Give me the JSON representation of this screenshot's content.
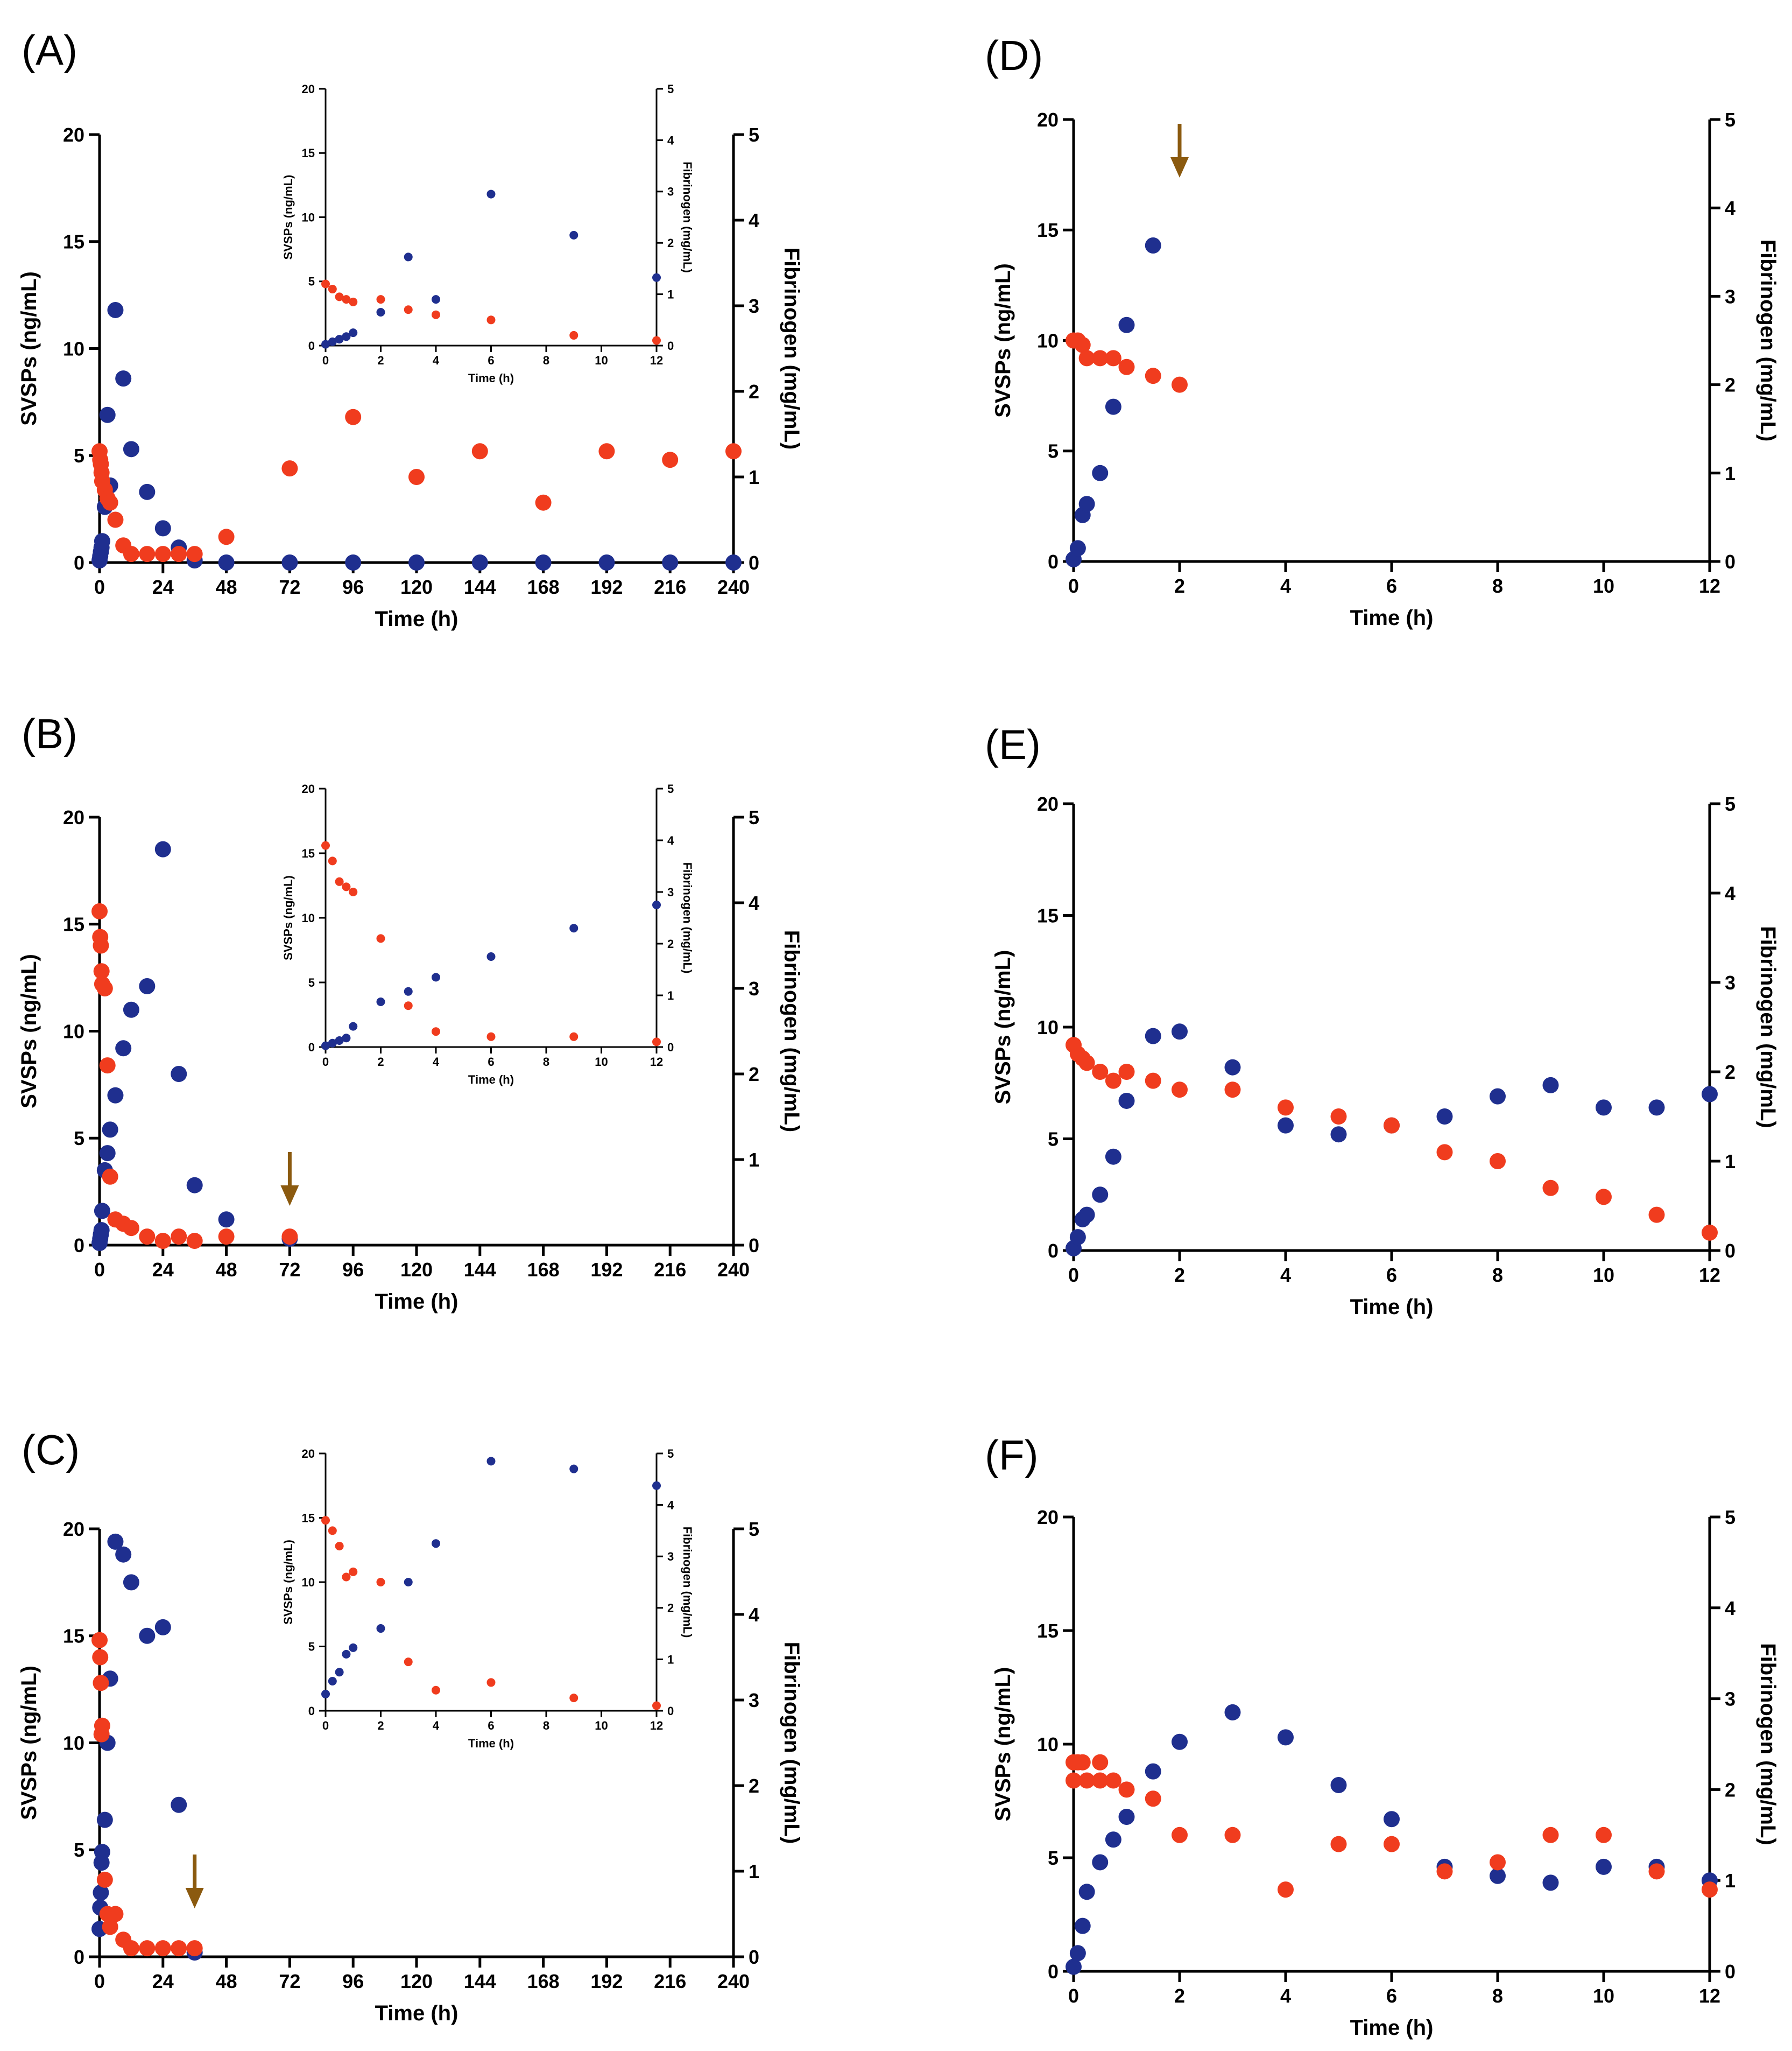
{
  "colors": {
    "svsp": "#1f2f8f",
    "fibrinogen": "#f03c1e",
    "arrow": "#8b5a0f",
    "axis": "#000000"
  },
  "chart_data": [
    {
      "id": "A",
      "type": "scatter",
      "panel_label": "(A)",
      "xlabel": "Time (h)",
      "ylabel": "SVSPs (ng/mL)",
      "y2label": "Fibrinogen (mg/mL)",
      "xlim": [
        0,
        240
      ],
      "ylim": [
        0,
        20
      ],
      "y2lim": [
        0,
        5
      ],
      "xticks": [
        0,
        24,
        48,
        72,
        96,
        120,
        144,
        168,
        192,
        216,
        240
      ],
      "yticks": [
        0,
        5,
        10,
        15,
        20
      ],
      "y2ticks": [
        0,
        1,
        2,
        3,
        4,
        5
      ],
      "arrow_x": null,
      "series": [
        {
          "name": "SVSPs",
          "axis": "left",
          "color": "svsp",
          "x": [
            0,
            0.25,
            0.5,
            0.75,
            1,
            2,
            3,
            4,
            6,
            9,
            12,
            18,
            24,
            30,
            36,
            48,
            72,
            96,
            120,
            144,
            168,
            192,
            216,
            240
          ],
          "y": [
            0.1,
            0.3,
            0.5,
            0.7,
            1.0,
            2.6,
            6.9,
            3.6,
            11.8,
            8.6,
            5.3,
            3.3,
            1.6,
            0.7,
            0.1,
            0,
            0,
            0,
            0,
            0,
            0,
            0,
            0,
            0
          ]
        },
        {
          "name": "Fibrinogen",
          "axis": "right",
          "color": "fibrinogen",
          "x": [
            0,
            0.25,
            0.5,
            0.75,
            1,
            2,
            3,
            4,
            6,
            9,
            12,
            18,
            24,
            30,
            36,
            48,
            72,
            96,
            120,
            144,
            168,
            192,
            216,
            240
          ],
          "y": [
            1.3,
            1.2,
            1.15,
            1.05,
            0.95,
            0.85,
            0.75,
            0.7,
            0.5,
            0.2,
            0.1,
            0.1,
            0.1,
            0.1,
            0.1,
            0.3,
            1.1,
            1.7,
            1.0,
            1.3,
            0.7,
            1.3,
            1.2,
            1.3
          ]
        }
      ],
      "inset": {
        "xlabel": "Time (h)",
        "ylabel": "SVSPs (ng/mL)",
        "y2label": "Fibrinogen (mg/mL)",
        "xlim": [
          0,
          12
        ],
        "ylim": [
          0,
          20
        ],
        "y2lim": [
          0,
          5
        ],
        "xticks": [
          0,
          2,
          4,
          6,
          8,
          10,
          12
        ],
        "yticks": [
          0,
          5,
          10,
          15,
          20
        ],
        "y2ticks": [
          0,
          1,
          2,
          3,
          4,
          5
        ],
        "series": [
          {
            "name": "SVSPs",
            "axis": "left",
            "color": "svsp",
            "x": [
              0,
              0.25,
              0.5,
              0.75,
              1,
              2,
              3,
              4,
              6,
              9,
              12
            ],
            "y": [
              0.1,
              0.3,
              0.5,
              0.7,
              1.0,
              2.6,
              6.9,
              3.6,
              11.8,
              8.6,
              5.3
            ]
          },
          {
            "name": "Fibrinogen",
            "axis": "right",
            "color": "fibrinogen",
            "x": [
              0,
              0.25,
              0.5,
              0.75,
              1,
              2,
              3,
              4,
              6,
              9,
              12
            ],
            "y": [
              1.2,
              1.1,
              0.95,
              0.9,
              0.85,
              0.9,
              0.7,
              0.6,
              0.5,
              0.2,
              0.1
            ]
          }
        ]
      }
    },
    {
      "id": "B",
      "type": "scatter",
      "panel_label": "(B)",
      "xlabel": "Time (h)",
      "ylabel": "SVSPs (ng/mL)",
      "y2label": "Fibrinogen (mg/mL)",
      "xlim": [
        0,
        240
      ],
      "ylim": [
        0,
        20
      ],
      "y2lim": [
        0,
        5
      ],
      "xticks": [
        0,
        24,
        48,
        72,
        96,
        120,
        144,
        168,
        192,
        216,
        240
      ],
      "yticks": [
        0,
        5,
        10,
        15,
        20
      ],
      "y2ticks": [
        0,
        1,
        2,
        3,
        4,
        5
      ],
      "arrow_x": 72,
      "series": [
        {
          "name": "SVSPs",
          "axis": "left",
          "color": "svsp",
          "x": [
            0,
            0.25,
            0.5,
            0.75,
            1,
            2,
            3,
            4,
            6,
            9,
            12,
            18,
            24,
            30,
            36,
            48,
            72
          ],
          "y": [
            0.1,
            0.3,
            0.5,
            0.7,
            1.6,
            3.5,
            4.3,
            5.4,
            7.0,
            9.2,
            11.0,
            12.1,
            18.5,
            8.0,
            2.8,
            1.2,
            0.3
          ]
        },
        {
          "name": "Fibrinogen",
          "axis": "right",
          "color": "fibrinogen",
          "x": [
            0,
            0.25,
            0.5,
            0.75,
            1,
            2,
            3,
            4,
            6,
            9,
            12,
            18,
            24,
            30,
            36,
            48,
            72
          ],
          "y": [
            3.9,
            3.6,
            3.5,
            3.2,
            3.05,
            3.0,
            2.1,
            0.8,
            0.3,
            0.25,
            0.2,
            0.1,
            0.05,
            0.1,
            0.05,
            0.1,
            0.1
          ]
        }
      ],
      "inset": {
        "xlabel": "Time (h)",
        "ylabel": "SVSPs (ng/mL)",
        "y2label": "Fibrinogen (mg/mL)",
        "xlim": [
          0,
          12
        ],
        "ylim": [
          0,
          20
        ],
        "y2lim": [
          0,
          5
        ],
        "xticks": [
          0,
          2,
          4,
          6,
          8,
          10,
          12
        ],
        "yticks": [
          0,
          5,
          10,
          15,
          20
        ],
        "y2ticks": [
          0,
          1,
          2,
          3,
          4,
          5
        ],
        "series": [
          {
            "name": "SVSPs",
            "axis": "left",
            "color": "svsp",
            "x": [
              0,
              0.25,
              0.5,
              0.75,
              1,
              2,
              3,
              4,
              6,
              9,
              12
            ],
            "y": [
              0.1,
              0.3,
              0.5,
              0.7,
              1.6,
              3.5,
              4.3,
              5.4,
              7.0,
              9.2,
              11.0
            ]
          },
          {
            "name": "Fibrinogen",
            "axis": "right",
            "color": "fibrinogen",
            "x": [
              0,
              0.25,
              0.5,
              0.75,
              1,
              2,
              3,
              4,
              6,
              9,
              12
            ],
            "y": [
              3.9,
              3.6,
              3.2,
              3.1,
              3.0,
              2.1,
              0.8,
              0.3,
              0.2,
              0.2,
              0.1
            ]
          }
        ]
      }
    },
    {
      "id": "C",
      "type": "scatter",
      "panel_label": "(C)",
      "xlabel": "Time (h)",
      "ylabel": "SVSPs (ng/mL)",
      "y2label": "Fibrinogen (mg/mL)",
      "xlim": [
        0,
        240
      ],
      "ylim": [
        0,
        20
      ],
      "y2lim": [
        0,
        5
      ],
      "xticks": [
        0,
        24,
        48,
        72,
        96,
        120,
        144,
        168,
        192,
        216,
        240
      ],
      "yticks": [
        0,
        5,
        10,
        15,
        20
      ],
      "y2ticks": [
        0,
        1,
        2,
        3,
        4,
        5
      ],
      "arrow_x": 36,
      "series": [
        {
          "name": "SVSPs",
          "axis": "left",
          "color": "svsp",
          "x": [
            0,
            0.25,
            0.5,
            0.75,
            1,
            2,
            3,
            4,
            6,
            9,
            12,
            18,
            24,
            30,
            36
          ],
          "y": [
            1.3,
            2.3,
            3.0,
            4.4,
            4.9,
            6.4,
            10.0,
            13.0,
            19.4,
            18.8,
            17.5,
            15.0,
            15.4,
            7.1,
            0.2
          ]
        },
        {
          "name": "Fibrinogen",
          "axis": "right",
          "color": "fibrinogen",
          "x": [
            0,
            0.25,
            0.5,
            0.75,
            1,
            2,
            3,
            4,
            6,
            9,
            12,
            18,
            24,
            30,
            36
          ],
          "y": [
            3.7,
            3.5,
            3.2,
            2.6,
            2.7,
            0.9,
            0.5,
            0.35,
            0.5,
            0.2,
            0.1,
            0.1,
            0.1,
            0.1,
            0.1
          ]
        }
      ],
      "inset": {
        "xlabel": "Time (h)",
        "ylabel": "SVSPs (ng/mL)",
        "y2label": "Fibrinogen (mg/mL)",
        "xlim": [
          0,
          12
        ],
        "ylim": [
          0,
          20
        ],
        "y2lim": [
          0,
          5
        ],
        "xticks": [
          0,
          2,
          4,
          6,
          8,
          10,
          12
        ],
        "yticks": [
          0,
          5,
          10,
          15,
          20
        ],
        "y2ticks": [
          0,
          1,
          2,
          3,
          4,
          5
        ],
        "series": [
          {
            "name": "SVSPs",
            "axis": "left",
            "color": "svsp",
            "x": [
              0,
              0.25,
              0.5,
              0.75,
              1,
              2,
              3,
              4,
              6,
              9,
              12
            ],
            "y": [
              1.3,
              2.3,
              3.0,
              4.4,
              4.9,
              6.4,
              10.0,
              13.0,
              19.4,
              18.8,
              17.5
            ]
          },
          {
            "name": "Fibrinogen",
            "axis": "right",
            "color": "fibrinogen",
            "x": [
              0,
              0.25,
              0.5,
              0.75,
              1,
              2,
              3,
              4,
              6,
              9,
              12
            ],
            "y": [
              3.7,
              3.5,
              3.2,
              2.6,
              2.7,
              2.5,
              0.95,
              0.4,
              0.55,
              0.25,
              0.1
            ]
          }
        ]
      }
    },
    {
      "id": "D",
      "type": "scatter",
      "panel_label": "(D)",
      "xlabel": "Time (h)",
      "ylabel": "SVSPs (ng/mL)",
      "y2label": "Fibrinogen (mg/mL)",
      "xlim": [
        0,
        12
      ],
      "ylim": [
        0,
        20
      ],
      "y2lim": [
        0,
        5
      ],
      "xticks": [
        0,
        2,
        4,
        6,
        8,
        10,
        12
      ],
      "yticks": [
        0,
        5,
        10,
        15,
        20
      ],
      "y2ticks": [
        0,
        1,
        2,
        3,
        4,
        5
      ],
      "arrow_x": 2,
      "series": [
        {
          "name": "SVSPs",
          "axis": "left",
          "color": "svsp",
          "x": [
            0,
            0.08,
            0.17,
            0.25,
            0.5,
            0.75,
            1,
            1.5
          ],
          "y": [
            0.1,
            0.6,
            2.1,
            2.6,
            4.0,
            7.0,
            10.7,
            14.3
          ]
        },
        {
          "name": "Fibrinogen",
          "axis": "right",
          "color": "fibrinogen",
          "x": [
            0,
            0.08,
            0.17,
            0.25,
            0.5,
            0.75,
            1,
            1.5,
            2
          ],
          "y": [
            2.5,
            2.5,
            2.45,
            2.3,
            2.3,
            2.3,
            2.2,
            2.1,
            2.0
          ]
        }
      ]
    },
    {
      "id": "E",
      "type": "scatter",
      "panel_label": "(E)",
      "xlabel": "Time (h)",
      "ylabel": "SVSPs (ng/mL)",
      "y2label": "Fibrinogen (mg/mL)",
      "xlim": [
        0,
        12
      ],
      "ylim": [
        0,
        20
      ],
      "y2lim": [
        0,
        5
      ],
      "xticks": [
        0,
        2,
        4,
        6,
        8,
        10,
        12
      ],
      "yticks": [
        0,
        5,
        10,
        15,
        20
      ],
      "y2ticks": [
        0,
        1,
        2,
        3,
        4,
        5
      ],
      "arrow_x": null,
      "series": [
        {
          "name": "SVSPs",
          "axis": "left",
          "color": "svsp",
          "x": [
            0,
            0.08,
            0.17,
            0.25,
            0.5,
            0.75,
            1,
            1.5,
            2,
            3,
            4,
            5,
            6,
            7,
            8,
            9,
            10,
            11,
            12
          ],
          "y": [
            0.1,
            0.6,
            1.4,
            1.6,
            2.5,
            4.2,
            6.7,
            9.6,
            9.8,
            8.2,
            5.6,
            5.2,
            5.6,
            6.0,
            6.9,
            7.4,
            6.4,
            6.4,
            7.0
          ]
        },
        {
          "name": "Fibrinogen",
          "axis": "right",
          "color": "fibrinogen",
          "x": [
            0,
            0.08,
            0.17,
            0.25,
            0.5,
            0.75,
            1,
            1.5,
            2,
            3,
            4,
            5,
            6,
            7,
            8,
            9,
            10,
            11,
            12
          ],
          "y": [
            2.3,
            2.2,
            2.15,
            2.1,
            2.0,
            1.9,
            2.0,
            1.9,
            1.8,
            1.8,
            1.6,
            1.5,
            1.4,
            1.1,
            1.0,
            0.7,
            0.6,
            0.4,
            0.2
          ]
        }
      ]
    },
    {
      "id": "F",
      "type": "scatter",
      "panel_label": "(F)",
      "xlabel": "Time (h)",
      "ylabel": "SVSPs (ng/mL)",
      "y2label": "Fibrinogen (mg/mL)",
      "xlim": [
        0,
        12
      ],
      "ylim": [
        0,
        20
      ],
      "y2lim": [
        0,
        5
      ],
      "xticks": [
        0,
        2,
        4,
        6,
        8,
        10,
        12
      ],
      "yticks": [
        0,
        5,
        10,
        15,
        20
      ],
      "y2ticks": [
        0,
        1,
        2,
        3,
        4,
        5
      ],
      "arrow_x": null,
      "series": [
        {
          "name": "SVSPs",
          "axis": "left",
          "color": "svsp",
          "x": [
            0,
            0.08,
            0.17,
            0.25,
            0.5,
            0.75,
            1,
            1.5,
            2,
            3,
            4,
            5,
            6,
            7,
            8,
            9,
            10,
            11,
            12
          ],
          "y": [
            0.2,
            0.8,
            2.0,
            3.5,
            4.8,
            5.8,
            6.8,
            8.8,
            10.1,
            11.4,
            10.3,
            8.2,
            6.7,
            4.6,
            4.2,
            3.9,
            4.6,
            4.6,
            4.0
          ]
        },
        {
          "name": "Fibrinogen",
          "axis": "right",
          "color": "fibrinogen",
          "x": [
            0,
            0,
            0.08,
            0.17,
            0.25,
            0.5,
            0.5,
            0.75,
            1,
            1.5,
            2,
            3,
            4,
            5,
            6,
            7,
            8,
            9,
            10,
            11,
            12
          ],
          "y": [
            2.3,
            2.1,
            2.3,
            2.3,
            2.1,
            2.1,
            2.3,
            2.1,
            2.0,
            1.9,
            1.5,
            1.5,
            0.9,
            1.4,
            1.4,
            1.1,
            1.2,
            1.5,
            1.5,
            1.1,
            0.9
          ]
        }
      ]
    }
  ]
}
